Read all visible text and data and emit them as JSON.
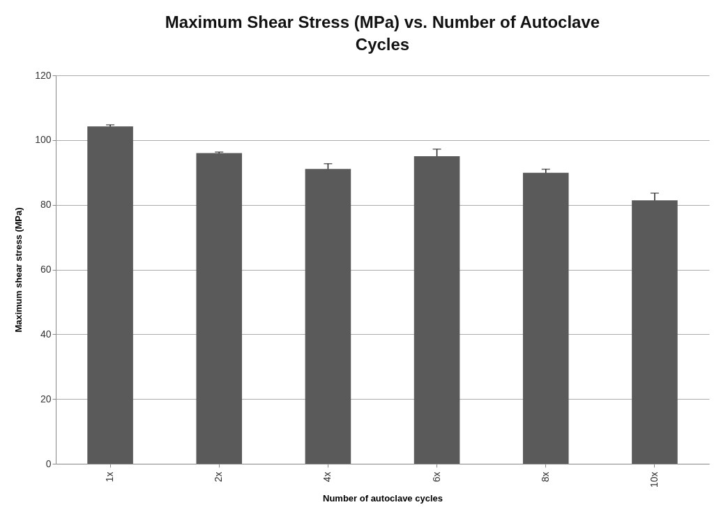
{
  "chart_data": {
    "type": "bar",
    "title": "Maximum Shear Stress (MPa) vs. Number of Autoclave Cycles",
    "xlabel": "Number of autoclave cycles",
    "ylabel": "Maximum shear stress (MPa)",
    "categories": [
      "1x",
      "2x",
      "4x",
      "6x",
      "8x",
      "10x"
    ],
    "values": [
      104.2,
      96.0,
      91.1,
      95.0,
      89.9,
      81.4
    ],
    "errors": [
      0.5,
      0.3,
      1.6,
      2.2,
      1.1,
      2.2
    ],
    "color": "#5a5a5a",
    "ylim": [
      0,
      120
    ],
    "yticks": [
      0,
      20,
      40,
      60,
      80,
      100,
      120
    ],
    "grid": "y"
  }
}
